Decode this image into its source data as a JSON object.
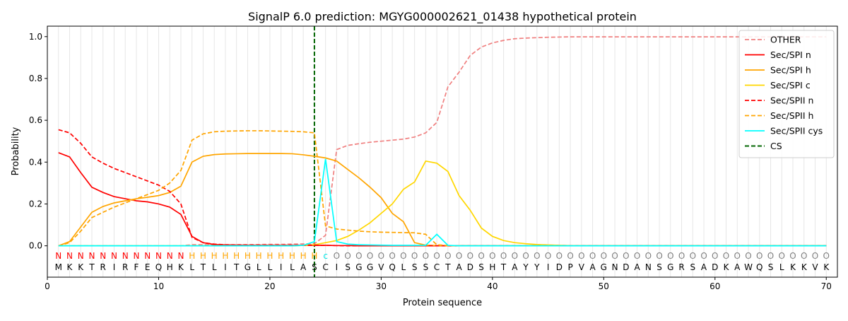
{
  "chart_data": {
    "type": "line",
    "title": "SignalP 6.0 prediction: MGYG000002621_01438 hypothetical protein",
    "xlabel": "Protein sequence",
    "ylabel": "Probability",
    "xlim": [
      0,
      71
    ],
    "ylim": [
      -0.15,
      1.05
    ],
    "xticks": [
      "0",
      "10",
      "20",
      "30",
      "40",
      "50",
      "60",
      "70"
    ],
    "yticks": [
      "0.0",
      "0.2",
      "0.4",
      "0.6",
      "0.8",
      "1.0"
    ],
    "grid": "vertical-per-residue",
    "legend_position": "top-right",
    "sequence": [
      "M",
      "K",
      "K",
      "T",
      "R",
      "I",
      "R",
      "F",
      "E",
      "Q",
      "H",
      "K",
      "L",
      "T",
      "L",
      "I",
      "T",
      "G",
      "L",
      "L",
      "I",
      "L",
      "A",
      "S",
      "C",
      "I",
      "S",
      "G",
      "G",
      "V",
      "Q",
      "L",
      "S",
      "S",
      "C",
      "T",
      "A",
      "D",
      "S",
      "H",
      "T",
      "A",
      "Y",
      "Y",
      "I",
      "D",
      "P",
      "V",
      "A",
      "G",
      "N",
      "D",
      "A",
      "N",
      "S",
      "G",
      "R",
      "S",
      "A",
      "D",
      "K",
      "A",
      "W",
      "Q",
      "S",
      "L",
      "K",
      "K",
      "V",
      "K"
    ],
    "region_labels": [
      "N",
      "N",
      "N",
      "N",
      "N",
      "N",
      "N",
      "N",
      "N",
      "N",
      "N",
      "N",
      "H",
      "H",
      "H",
      "H",
      "H",
      "H",
      "H",
      "H",
      "H",
      "H",
      "H",
      "H",
      "c",
      "O",
      "O",
      "O",
      "O",
      "O",
      "O",
      "O",
      "O",
      "O",
      "O",
      "O",
      "O",
      "O",
      "O",
      "O",
      "O",
      "O",
      "O",
      "O",
      "O",
      "O",
      "O",
      "O",
      "O",
      "O",
      "O",
      "O",
      "O",
      "O",
      "O",
      "O",
      "O",
      "O",
      "O",
      "O",
      "O",
      "O",
      "O",
      "O",
      "O",
      "O",
      "O",
      "O",
      "O",
      "O"
    ],
    "region_colors": {
      "N": "#ff0000",
      "H": "#ffa500",
      "c": "#00e5e5",
      "O": "#808080"
    },
    "cs_position": 24,
    "series": [
      {
        "name": "OTHER",
        "color": "#f08080",
        "dash": true,
        "values": [
          0.0,
          0.0,
          0.0,
          0.0,
          0.0,
          0.0,
          0.0,
          0.0,
          0.0,
          0.0,
          0.0,
          0.0,
          0.005,
          0.005,
          0.005,
          0.005,
          0.005,
          0.006,
          0.006,
          0.007,
          0.007,
          0.008,
          0.009,
          0.01,
          0.05,
          0.46,
          0.48,
          0.488,
          0.495,
          0.5,
          0.505,
          0.51,
          0.52,
          0.54,
          0.59,
          0.76,
          0.83,
          0.91,
          0.95,
          0.97,
          0.982,
          0.99,
          0.993,
          0.995,
          0.997,
          0.998,
          0.999,
          0.999,
          0.999,
          0.999,
          0.999,
          0.999,
          0.999,
          0.999,
          0.999,
          0.999,
          0.999,
          0.999,
          0.999,
          0.999,
          0.999,
          0.999,
          0.999,
          0.999,
          0.999,
          0.999,
          0.999,
          0.999,
          0.999,
          0.999
        ]
      },
      {
        "name": "Sec/SPI n",
        "color": "#ff0000",
        "dash": false,
        "values": [
          0.445,
          0.425,
          0.35,
          0.28,
          0.255,
          0.235,
          0.225,
          0.215,
          0.21,
          0.2,
          0.185,
          0.15,
          0.045,
          0.015,
          0.006,
          0.004,
          0.003,
          0.002,
          0.002,
          0.002,
          0.002,
          0.002,
          0.002,
          0.002,
          0.002,
          0.001,
          0.001,
          0.0,
          0.0,
          0.0,
          0.0,
          0.0,
          0.0,
          0.0,
          0.0,
          0.0,
          0.0,
          0.0,
          0.0,
          0.0,
          0.0,
          0.0,
          0.0,
          0.0,
          0.0,
          0.0,
          0.0,
          0.0,
          0.0,
          0.0,
          0.0,
          0.0,
          0.0,
          0.0,
          0.0,
          0.0,
          0.0,
          0.0,
          0.0,
          0.0,
          0.0,
          0.0,
          0.0,
          0.0,
          0.0,
          0.0,
          0.0,
          0.0,
          0.0,
          0.0
        ]
      },
      {
        "name": "Sec/SPI h",
        "color": "#ffa500",
        "dash": false,
        "values": [
          0.0,
          0.02,
          0.09,
          0.16,
          0.188,
          0.205,
          0.215,
          0.225,
          0.232,
          0.24,
          0.255,
          0.285,
          0.4,
          0.428,
          0.436,
          0.439,
          0.44,
          0.441,
          0.441,
          0.441,
          0.441,
          0.44,
          0.435,
          0.428,
          0.42,
          0.405,
          0.365,
          0.325,
          0.28,
          0.23,
          0.155,
          0.115,
          0.015,
          0.003,
          0.001,
          0.0,
          0.0,
          0.0,
          0.0,
          0.0,
          0.0,
          0.0,
          0.0,
          0.0,
          0.0,
          0.0,
          0.0,
          0.0,
          0.0,
          0.0,
          0.0,
          0.0,
          0.0,
          0.0,
          0.0,
          0.0,
          0.0,
          0.0,
          0.0,
          0.0,
          0.0,
          0.0,
          0.0,
          0.0,
          0.0,
          0.0,
          0.0,
          0.0,
          0.0,
          0.0
        ]
      },
      {
        "name": "Sec/SPI c",
        "color": "#ffd700",
        "dash": false,
        "values": [
          0.0,
          0.0,
          0.0,
          0.0,
          0.0,
          0.0,
          0.0,
          0.0,
          0.0,
          0.0,
          0.0,
          0.0,
          0.0,
          0.0,
          0.0,
          0.0,
          0.0,
          0.0,
          0.0,
          0.0,
          0.0,
          0.0,
          0.002,
          0.005,
          0.015,
          0.025,
          0.045,
          0.075,
          0.11,
          0.155,
          0.2,
          0.27,
          0.305,
          0.405,
          0.395,
          0.355,
          0.24,
          0.17,
          0.085,
          0.045,
          0.025,
          0.015,
          0.01,
          0.006,
          0.004,
          0.002,
          0.001,
          0.0,
          0.0,
          0.0,
          0.0,
          0.0,
          0.0,
          0.0,
          0.0,
          0.0,
          0.0,
          0.0,
          0.0,
          0.0,
          0.0,
          0.0,
          0.0,
          0.0,
          0.0,
          0.0,
          0.0,
          0.0,
          0.0,
          0.0
        ]
      },
      {
        "name": "Sec/SPII n",
        "color": "#ff0000",
        "dash": true,
        "values": [
          0.555,
          0.54,
          0.49,
          0.425,
          0.395,
          0.37,
          0.35,
          0.33,
          0.31,
          0.29,
          0.26,
          0.2,
          0.04,
          0.015,
          0.008,
          0.005,
          0.004,
          0.003,
          0.003,
          0.003,
          0.003,
          0.003,
          0.003,
          0.003,
          0.002,
          0.001,
          0.0,
          0.0,
          0.0,
          0.0,
          0.0,
          0.0,
          0.0,
          0.0,
          0.0,
          0.0,
          0.0,
          0.0,
          0.0,
          0.0,
          0.0,
          0.0,
          0.0,
          0.0,
          0.0,
          0.0,
          0.0,
          0.0,
          0.0,
          0.0,
          0.0,
          0.0,
          0.0,
          0.0,
          0.0,
          0.0,
          0.0,
          0.0,
          0.0,
          0.0,
          0.0,
          0.0,
          0.0,
          0.0,
          0.0,
          0.0,
          0.0,
          0.0,
          0.0,
          0.0
        ]
      },
      {
        "name": "Sec/SPII h",
        "color": "#ffa500",
        "dash": true,
        "values": [
          0.0,
          0.015,
          0.07,
          0.135,
          0.16,
          0.185,
          0.205,
          0.225,
          0.245,
          0.265,
          0.3,
          0.36,
          0.505,
          0.535,
          0.545,
          0.548,
          0.549,
          0.55,
          0.55,
          0.549,
          0.548,
          0.547,
          0.545,
          0.54,
          0.095,
          0.08,
          0.075,
          0.07,
          0.067,
          0.065,
          0.064,
          0.063,
          0.062,
          0.055,
          0.005,
          0.001,
          0.0,
          0.0,
          0.0,
          0.0,
          0.0,
          0.0,
          0.0,
          0.0,
          0.0,
          0.0,
          0.0,
          0.0,
          0.0,
          0.0,
          0.0,
          0.0,
          0.0,
          0.0,
          0.0,
          0.0,
          0.0,
          0.0,
          0.0,
          0.0,
          0.0,
          0.0,
          0.0,
          0.0,
          0.0,
          0.0,
          0.0,
          0.0,
          0.0,
          0.0
        ]
      },
      {
        "name": "Sec/SPII cys",
        "color": "#00ffff",
        "dash": false,
        "values": [
          0.0,
          0.0,
          0.0,
          0.0,
          0.0,
          0.0,
          0.0,
          0.0,
          0.0,
          0.0,
          0.0,
          0.0,
          0.0,
          0.0,
          0.0,
          0.0,
          0.0,
          0.0,
          0.0,
          0.0,
          0.0,
          0.0,
          0.002,
          0.02,
          0.415,
          0.02,
          0.008,
          0.005,
          0.004,
          0.003,
          0.002,
          0.002,
          0.002,
          0.002,
          0.055,
          0.002,
          0.0,
          0.0,
          0.0,
          0.0,
          0.0,
          0.0,
          0.0,
          0.0,
          0.0,
          0.0,
          0.0,
          0.0,
          0.0,
          0.0,
          0.0,
          0.0,
          0.0,
          0.0,
          0.0,
          0.0,
          0.0,
          0.0,
          0.0,
          0.0,
          0.0,
          0.0,
          0.0,
          0.0,
          0.0,
          0.0,
          0.0,
          0.0,
          0.0,
          0.0
        ]
      }
    ],
    "legend": [
      "OTHER",
      "Sec/SPI n",
      "Sec/SPI h",
      "Sec/SPI c",
      "Sec/SPII n",
      "Sec/SPII h",
      "Sec/SPII cys",
      "CS"
    ],
    "cs_legend": {
      "name": "CS",
      "color": "#006400"
    }
  }
}
